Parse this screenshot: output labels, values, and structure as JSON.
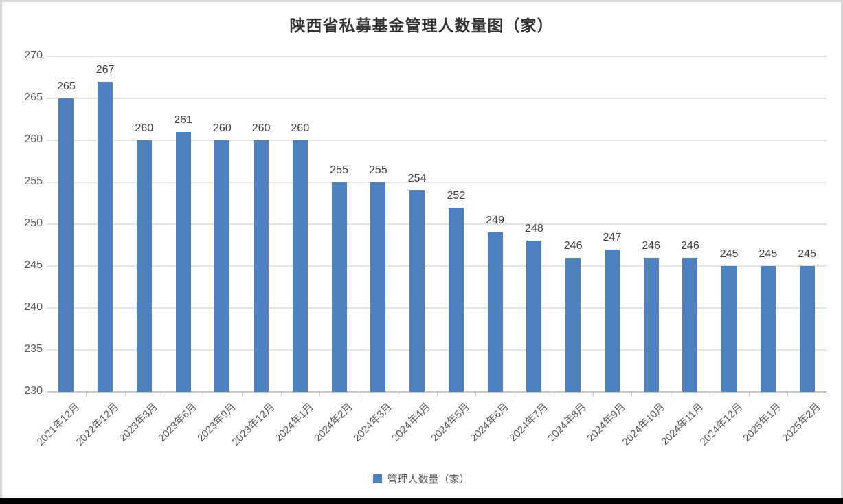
{
  "chart_data": {
    "type": "bar",
    "title": "陕西省私募基金管理人数量图（家）",
    "categories": [
      "2021年12月",
      "2022年12月",
      "2023年3月",
      "2023年6月",
      "2023年9月",
      "2023年12月",
      "2024年1月",
      "2024年2月",
      "2024年3月",
      "2024年4月",
      "2024年5月",
      "2024年6月",
      "2024年7月",
      "2024年8月",
      "2024年9月",
      "2024年10月",
      "2024年11月",
      "2024年12月",
      "2025年1月",
      "2025年2月"
    ],
    "values": [
      265,
      267,
      260,
      261,
      260,
      260,
      260,
      255,
      255,
      254,
      252,
      249,
      248,
      246,
      247,
      246,
      246,
      245,
      245,
      245
    ],
    "series_name": "管理人数量（家）",
    "xlabel": "",
    "ylabel": "",
    "ylim": [
      230,
      270
    ],
    "yticks": [
      230,
      235,
      240,
      245,
      250,
      255,
      260,
      265,
      270
    ],
    "grid": true,
    "data_labels": true,
    "legend_position": "bottom"
  },
  "legend": {
    "label": "管理人数量（家）"
  },
  "colors": {
    "bar": "#4E81BD",
    "gridline": "#E2E2E2",
    "axis_line": "#C9C9C9",
    "axis_text": "#595959",
    "data_label_text": "#3D3D3D",
    "title_text": "#333333",
    "bottom_bar": "#000000"
  }
}
